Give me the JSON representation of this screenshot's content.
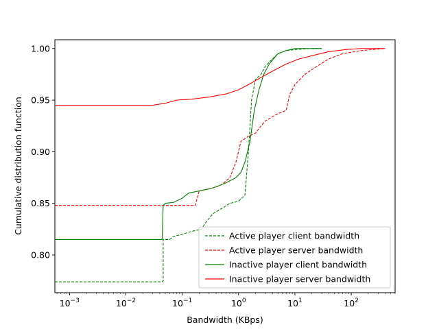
{
  "chart_data": {
    "type": "line",
    "title": "",
    "xlabel": "Bandwidth (KBps)",
    "ylabel": "Cumulative distribution function",
    "xscale": "log",
    "xlim": [
      0.00055,
      600
    ],
    "ylim": [
      0.7635,
      1.0085
    ],
    "grid": false,
    "legend_position": "lower-right",
    "x_ticks": [
      {
        "value": 0.001,
        "base": "10",
        "exp": "−3"
      },
      {
        "value": 0.01,
        "base": "10",
        "exp": "−2"
      },
      {
        "value": 0.1,
        "base": "10",
        "exp": "−1"
      },
      {
        "value": 1,
        "base": "10",
        "exp": "0"
      },
      {
        "value": 10,
        "base": "10",
        "exp": "1"
      },
      {
        "value": 100,
        "base": "10",
        "exp": "2"
      }
    ],
    "y_ticks": [
      {
        "value": 0.8,
        "label": "0.80"
      },
      {
        "value": 0.85,
        "label": "0.85"
      },
      {
        "value": 0.9,
        "label": "0.90"
      },
      {
        "value": 0.95,
        "label": "0.95"
      },
      {
        "value": 1.0,
        "label": "1.00"
      }
    ],
    "series": [
      {
        "name": "Active player client bandwidth",
        "color": "#008000",
        "dash": "dashed",
        "points": [
          [
            0.0005,
            0.774
          ],
          [
            0.044,
            0.774
          ],
          [
            0.046,
            0.775
          ],
          [
            0.046,
            0.815
          ],
          [
            0.06,
            0.815
          ],
          [
            0.07,
            0.818
          ],
          [
            0.1,
            0.82
          ],
          [
            0.15,
            0.823
          ],
          [
            0.22,
            0.825
          ],
          [
            0.25,
            0.83
          ],
          [
            0.35,
            0.84
          ],
          [
            0.5,
            0.845
          ],
          [
            0.7,
            0.85
          ],
          [
            1.0,
            0.852
          ],
          [
            1.3,
            0.858
          ],
          [
            1.5,
            0.9
          ],
          [
            1.7,
            0.95
          ],
          [
            2.0,
            0.97
          ],
          [
            2.5,
            0.975
          ],
          [
            3.0,
            0.983
          ],
          [
            4.0,
            0.99
          ],
          [
            5.0,
            0.995
          ],
          [
            7.0,
            0.998
          ],
          [
            10,
            0.999
          ],
          [
            20,
            1.0
          ],
          [
            30,
            1.0
          ]
        ]
      },
      {
        "name": "Active player server bandwidth",
        "color": "#ff0000",
        "dash": "dashed",
        "points": [
          [
            0.0005,
            0.848
          ],
          [
            0.17,
            0.848
          ],
          [
            0.2,
            0.862
          ],
          [
            0.35,
            0.865
          ],
          [
            0.5,
            0.868
          ],
          [
            0.7,
            0.875
          ],
          [
            0.9,
            0.89
          ],
          [
            1.1,
            0.91
          ],
          [
            1.5,
            0.915
          ],
          [
            2.0,
            0.918
          ],
          [
            2.5,
            0.925
          ],
          [
            3.0,
            0.93
          ],
          [
            5.0,
            0.937
          ],
          [
            7.0,
            0.94
          ],
          [
            8.0,
            0.955
          ],
          [
            10,
            0.965
          ],
          [
            15,
            0.975
          ],
          [
            25,
            0.983
          ],
          [
            40,
            0.99
          ],
          [
            70,
            0.995
          ],
          [
            150,
            0.998
          ],
          [
            400,
            1.0
          ]
        ]
      },
      {
        "name": "Inactive player client bandwidth",
        "color": "#008000",
        "dash": "solid",
        "points": [
          [
            0.0005,
            0.815
          ],
          [
            0.044,
            0.815
          ],
          [
            0.046,
            0.848
          ],
          [
            0.05,
            0.85
          ],
          [
            0.07,
            0.851
          ],
          [
            0.1,
            0.855
          ],
          [
            0.13,
            0.86
          ],
          [
            0.2,
            0.862
          ],
          [
            0.3,
            0.864
          ],
          [
            0.4,
            0.866
          ],
          [
            0.6,
            0.87
          ],
          [
            0.9,
            0.875
          ],
          [
            1.1,
            0.88
          ],
          [
            1.3,
            0.89
          ],
          [
            1.6,
            0.91
          ],
          [
            1.9,
            0.94
          ],
          [
            2.3,
            0.96
          ],
          [
            2.8,
            0.975
          ],
          [
            3.5,
            0.985
          ],
          [
            5.0,
            0.995
          ],
          [
            7.0,
            0.998
          ],
          [
            10,
            1.0
          ],
          [
            30,
            1.0
          ]
        ]
      },
      {
        "name": "Inactive player server bandwidth",
        "color": "#ff0000",
        "dash": "solid",
        "points": [
          [
            0.0005,
            0.945
          ],
          [
            0.03,
            0.945
          ],
          [
            0.05,
            0.947
          ],
          [
            0.08,
            0.95
          ],
          [
            0.15,
            0.951
          ],
          [
            0.3,
            0.953
          ],
          [
            0.6,
            0.956
          ],
          [
            1.0,
            0.96
          ],
          [
            1.5,
            0.965
          ],
          [
            2.5,
            0.972
          ],
          [
            4.0,
            0.978
          ],
          [
            7.0,
            0.985
          ],
          [
            12,
            0.99
          ],
          [
            20,
            0.993
          ],
          [
            40,
            0.997
          ],
          [
            80,
            0.999
          ],
          [
            150,
            1.0
          ],
          [
            400,
            1.0
          ]
        ]
      }
    ]
  }
}
